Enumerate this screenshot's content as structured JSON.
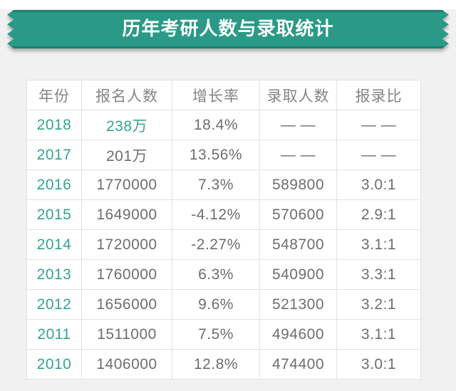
{
  "banner": {
    "title": "历年考研人数与录取统计"
  },
  "chart_data": {
    "type": "table",
    "title": "历年考研人数与录取统计",
    "columns": [
      "年份",
      "报名人数",
      "增长率",
      "录取人数",
      "报录比"
    ],
    "rows": [
      [
        "2018",
        "238万",
        "18.4%",
        "— —",
        "— —"
      ],
      [
        "2017",
        "201万",
        "13.56%",
        "— —",
        "— —"
      ],
      [
        "2016",
        "1770000",
        "7.3%",
        "589800",
        "3.0:1"
      ],
      [
        "2015",
        "1649000",
        "-4.12%",
        "570600",
        "2.9:1"
      ],
      [
        "2014",
        "1720000",
        "-2.27%",
        "548700",
        "3.1:1"
      ],
      [
        "2013",
        "1760000",
        "6.3%",
        "540900",
        "3.3:1"
      ],
      [
        "2012",
        "1656000",
        "9.6%",
        "521300",
        "3.2:1"
      ],
      [
        "2011",
        "1511000",
        "7.5%",
        "494600",
        "3.1:1"
      ],
      [
        "2010",
        "1406000",
        "12.8%",
        "474400",
        "3.0:1"
      ]
    ]
  },
  "colors": {
    "ribbon": "#2a9a87",
    "ribbon_edge": "#1d8170",
    "accent_text": "#35a391",
    "body_text": "#6e6e6e",
    "header_text": "#858585",
    "table_border": "#e2e2e2",
    "page_bg": "#f1f1f1",
    "table_bg": "#ffffff"
  }
}
